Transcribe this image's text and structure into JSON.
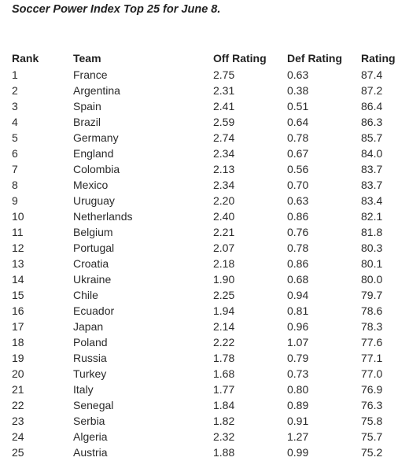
{
  "title": "Soccer Power Index Top 25 for June 8.",
  "columns": {
    "rank": "Rank",
    "team": "Team",
    "off": "Off Rating",
    "def": "Def Rating",
    "rating": "Rating"
  },
  "rows": [
    {
      "rank": "1",
      "team": "France",
      "off": "2.75",
      "def": "0.63",
      "rating": "87.4"
    },
    {
      "rank": "2",
      "team": "Argentina",
      "off": "2.31",
      "def": "0.38",
      "rating": "87.2"
    },
    {
      "rank": "3",
      "team": "Spain",
      "off": "2.41",
      "def": "0.51",
      "rating": "86.4"
    },
    {
      "rank": "4",
      "team": "Brazil",
      "off": "2.59",
      "def": "0.64",
      "rating": "86.3"
    },
    {
      "rank": "5",
      "team": "Germany",
      "off": "2.74",
      "def": "0.78",
      "rating": "85.7"
    },
    {
      "rank": "6",
      "team": "England",
      "off": "2.34",
      "def": "0.67",
      "rating": "84.0"
    },
    {
      "rank": "7",
      "team": "Colombia",
      "off": "2.13",
      "def": "0.56",
      "rating": "83.7"
    },
    {
      "rank": "8",
      "team": "Mexico",
      "off": "2.34",
      "def": "0.70",
      "rating": "83.7"
    },
    {
      "rank": "9",
      "team": "Uruguay",
      "off": "2.20",
      "def": "0.63",
      "rating": "83.4"
    },
    {
      "rank": "10",
      "team": "Netherlands",
      "off": "2.40",
      "def": "0.86",
      "rating": "82.1"
    },
    {
      "rank": "11",
      "team": "Belgium",
      "off": "2.21",
      "def": "0.76",
      "rating": "81.8"
    },
    {
      "rank": "12",
      "team": "Portugal",
      "off": "2.07",
      "def": "0.78",
      "rating": "80.3"
    },
    {
      "rank": "13",
      "team": "Croatia",
      "off": "2.18",
      "def": "0.86",
      "rating": "80.1"
    },
    {
      "rank": "14",
      "team": "Ukraine",
      "off": "1.90",
      "def": "0.68",
      "rating": "80.0"
    },
    {
      "rank": "15",
      "team": "Chile",
      "off": "2.25",
      "def": "0.94",
      "rating": "79.7"
    },
    {
      "rank": "16",
      "team": "Ecuador",
      "off": "1.94",
      "def": "0.81",
      "rating": "78.6"
    },
    {
      "rank": "17",
      "team": "Japan",
      "off": "2.14",
      "def": "0.96",
      "rating": "78.3"
    },
    {
      "rank": "18",
      "team": "Poland",
      "off": "2.22",
      "def": "1.07",
      "rating": "77.6"
    },
    {
      "rank": "19",
      "team": "Russia",
      "off": "1.78",
      "def": "0.79",
      "rating": "77.1"
    },
    {
      "rank": "20",
      "team": "Turkey",
      "off": "1.68",
      "def": "0.73",
      "rating": "77.0"
    },
    {
      "rank": "21",
      "team": "Italy",
      "off": "1.77",
      "def": "0.80",
      "rating": "76.9"
    },
    {
      "rank": "22",
      "team": "Senegal",
      "off": "1.84",
      "def": "0.89",
      "rating": "76.3"
    },
    {
      "rank": "23",
      "team": "Serbia",
      "off": "1.82",
      "def": "0.91",
      "rating": "75.8"
    },
    {
      "rank": "24",
      "team": "Algeria",
      "off": "2.32",
      "def": "1.27",
      "rating": "75.7"
    },
    {
      "rank": "25",
      "team": "Austria",
      "off": "1.88",
      "def": "0.99",
      "rating": "75.2"
    }
  ]
}
